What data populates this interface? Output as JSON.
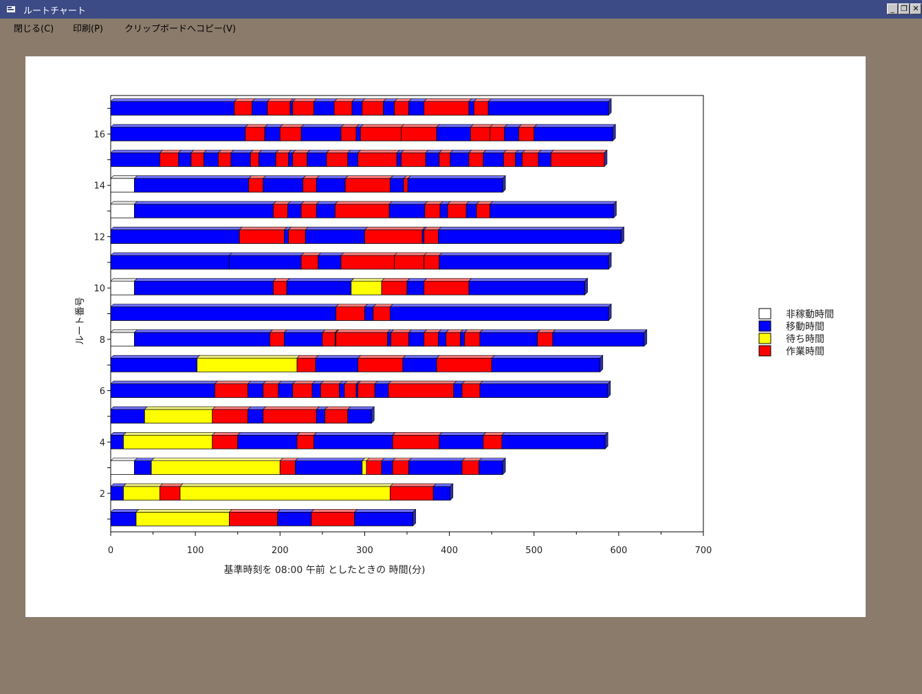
{
  "window": {
    "title": "ルートチャート"
  },
  "menu": {
    "items": [
      "閉じる(C)",
      "印刷(P)",
      "クリップボードへコピー(V)"
    ]
  },
  "chart_data": {
    "type": "bar",
    "orientation": "horizontal",
    "stacked": true,
    "xlabel": "基準時刻を 08:00 午前 としたときの 時間(分)",
    "ylabel": "ルート番号",
    "xlim": [
      0,
      700
    ],
    "xticks": [
      0,
      100,
      200,
      300,
      400,
      500,
      600,
      700
    ],
    "ytick_labels": [
      "2",
      "4",
      "6",
      "8",
      "10",
      "12",
      "14",
      "16"
    ],
    "legend_position": "right",
    "legend": [
      {
        "name": "非稼動時間",
        "color": "#ffffff"
      },
      {
        "name": "移動時間",
        "color": "#0000ff"
      },
      {
        "name": "待ち時間",
        "color": "#ffff00"
      },
      {
        "name": "作業時間",
        "color": "#ff0000"
      }
    ],
    "routes": [
      {
        "route": 1,
        "segments": [
          [
            "m",
            0,
            30
          ],
          [
            "w",
            30,
            140
          ],
          [
            "s",
            140,
            197
          ],
          [
            "m",
            197,
            237
          ],
          [
            "s",
            237,
            288
          ],
          [
            "m",
            288,
            357
          ]
        ]
      },
      {
        "route": 2,
        "segments": [
          [
            "m",
            0,
            15
          ],
          [
            "w",
            15,
            58
          ],
          [
            "s",
            58,
            82
          ],
          [
            "w",
            82,
            330
          ],
          [
            "s",
            330,
            381
          ],
          [
            "m",
            381,
            401
          ]
        ]
      },
      {
        "route": 3,
        "segments": [
          [
            "i",
            0,
            28
          ],
          [
            "m",
            28,
            48
          ],
          [
            "w",
            48,
            200
          ],
          [
            "s",
            200,
            218
          ],
          [
            "m",
            218,
            297
          ],
          [
            "w",
            297,
            302
          ],
          [
            "s",
            302,
            320
          ],
          [
            "m",
            320,
            333
          ],
          [
            "s",
            333,
            352
          ],
          [
            "m",
            352,
            415
          ],
          [
            "s",
            415,
            435
          ],
          [
            "m",
            435,
            463
          ]
        ]
      },
      {
        "route": 4,
        "segments": [
          [
            "m",
            0,
            15
          ],
          [
            "w",
            15,
            120
          ],
          [
            "s",
            120,
            150
          ],
          [
            "m",
            150,
            220
          ],
          [
            "s",
            220,
            240
          ],
          [
            "m",
            240,
            333
          ],
          [
            "s",
            333,
            388
          ],
          [
            "m",
            388,
            440
          ],
          [
            "s",
            440,
            462
          ],
          [
            "m",
            462,
            584
          ]
        ]
      },
      {
        "route": 5,
        "segments": [
          [
            "m",
            0,
            40
          ],
          [
            "w",
            40,
            120
          ],
          [
            "s",
            120,
            162
          ],
          [
            "m",
            162,
            180
          ],
          [
            "s",
            180,
            243
          ],
          [
            "m",
            243,
            253
          ],
          [
            "s",
            253,
            280
          ],
          [
            "m",
            280,
            308
          ]
        ]
      },
      {
        "route": 6,
        "segments": [
          [
            "m",
            0,
            123
          ],
          [
            "s",
            123,
            162
          ],
          [
            "m",
            162,
            180
          ],
          [
            "s",
            180,
            198
          ],
          [
            "m",
            198,
            215
          ],
          [
            "s",
            215,
            238
          ],
          [
            "m",
            238,
            248
          ],
          [
            "s",
            248,
            270
          ],
          [
            "m",
            270,
            276
          ],
          [
            "s",
            276,
            290
          ],
          [
            "m",
            290,
            292
          ],
          [
            "s",
            292,
            312
          ],
          [
            "m",
            312,
            328
          ],
          [
            "s",
            328,
            405
          ],
          [
            "m",
            405,
            415
          ],
          [
            "s",
            415,
            436
          ],
          [
            "m",
            436,
            587
          ]
        ]
      },
      {
        "route": 7,
        "segments": [
          [
            "m",
            0,
            102
          ],
          [
            "w",
            102,
            220
          ],
          [
            "s",
            220,
            242
          ],
          [
            "m",
            242,
            292
          ],
          [
            "s",
            292,
            345
          ],
          [
            "m",
            345,
            385
          ],
          [
            "s",
            385,
            450
          ],
          [
            "m",
            450,
            578
          ]
        ]
      },
      {
        "route": 8,
        "segments": [
          [
            "i",
            0,
            28
          ],
          [
            "m",
            28,
            188
          ],
          [
            "s",
            188,
            205
          ],
          [
            "m",
            205,
            250
          ],
          [
            "s",
            250,
            265
          ],
          [
            "m",
            265,
            266
          ],
          [
            "s",
            266,
            327
          ],
          [
            "m",
            327,
            331
          ],
          [
            "s",
            331,
            352
          ],
          [
            "m",
            352,
            370
          ],
          [
            "s",
            370,
            387
          ],
          [
            "m",
            387,
            396
          ],
          [
            "s",
            396,
            413
          ],
          [
            "m",
            413,
            418
          ],
          [
            "s",
            418,
            436
          ],
          [
            "m",
            436,
            504
          ],
          [
            "s",
            504,
            522
          ],
          [
            "m",
            522,
            630
          ]
        ]
      },
      {
        "route": 9,
        "segments": [
          [
            "m",
            0,
            266
          ],
          [
            "s",
            266,
            300
          ],
          [
            "m",
            300,
            310
          ],
          [
            "s",
            310,
            330
          ],
          [
            "m",
            330,
            588
          ]
        ]
      },
      {
        "route": 10,
        "segments": [
          [
            "i",
            0,
            28
          ],
          [
            "m",
            28,
            192
          ],
          [
            "s",
            192,
            208
          ],
          [
            "m",
            208,
            284
          ],
          [
            "w",
            284,
            320
          ],
          [
            "s",
            320,
            350
          ],
          [
            "m",
            350,
            370
          ],
          [
            "s",
            370,
            423
          ],
          [
            "m",
            423,
            560
          ]
        ]
      },
      {
        "route": 11,
        "segments": [
          [
            "m",
            0,
            140
          ],
          [
            "m",
            140,
            225
          ],
          [
            "s",
            225,
            245
          ],
          [
            "m",
            245,
            272
          ],
          [
            "s",
            272,
            335
          ],
          [
            "s",
            335,
            370
          ],
          [
            "s",
            370,
            388
          ],
          [
            "m",
            388,
            588
          ]
        ]
      },
      {
        "route": 12,
        "segments": [
          [
            "m",
            0,
            152
          ],
          [
            "s",
            152,
            205
          ],
          [
            "m",
            205,
            210
          ],
          [
            "s",
            210,
            230
          ],
          [
            "m",
            230,
            300
          ],
          [
            "s",
            300,
            368
          ],
          [
            "m",
            368,
            370
          ],
          [
            "s",
            370,
            387
          ],
          [
            "m",
            387,
            603
          ]
        ]
      },
      {
        "route": 13,
        "segments": [
          [
            "i",
            0,
            28
          ],
          [
            "m",
            28,
            192
          ],
          [
            "s",
            192,
            209
          ],
          [
            "m",
            209,
            225
          ],
          [
            "s",
            225,
            243
          ],
          [
            "m",
            243,
            265
          ],
          [
            "s",
            265,
            329
          ],
          [
            "m",
            329,
            371
          ],
          [
            "s",
            371,
            389
          ],
          [
            "m",
            389,
            398
          ],
          [
            "s",
            398,
            420
          ],
          [
            "m",
            420,
            432
          ],
          [
            "s",
            432,
            448
          ],
          [
            "m",
            448,
            594
          ]
        ]
      },
      {
        "route": 14,
        "segments": [
          [
            "i",
            0,
            28
          ],
          [
            "m",
            28,
            163
          ],
          [
            "s",
            163,
            180
          ],
          [
            "m",
            180,
            227
          ],
          [
            "s",
            227,
            243
          ],
          [
            "m",
            243,
            277
          ],
          [
            "s",
            277,
            330
          ],
          [
            "m",
            330,
            346
          ],
          [
            "s",
            346,
            351
          ],
          [
            "m",
            351,
            463
          ]
        ]
      },
      {
        "route": 15,
        "segments": [
          [
            "m",
            0,
            58
          ],
          [
            "s",
            58,
            80
          ],
          [
            "m",
            80,
            95
          ],
          [
            "s",
            95,
            110
          ],
          [
            "m",
            110,
            127
          ],
          [
            "s",
            127,
            142
          ],
          [
            "m",
            142,
            165
          ],
          [
            "s",
            165,
            175
          ],
          [
            "m",
            175,
            195
          ],
          [
            "s",
            195,
            210
          ],
          [
            "m",
            210,
            215
          ],
          [
            "s",
            215,
            232
          ],
          [
            "m",
            232,
            255
          ],
          [
            "s",
            255,
            280
          ],
          [
            "m",
            280,
            292
          ],
          [
            "s",
            292,
            338
          ],
          [
            "m",
            338,
            343
          ],
          [
            "s",
            343,
            372
          ],
          [
            "m",
            372,
            388
          ],
          [
            "s",
            388,
            401
          ],
          [
            "m",
            401,
            423
          ],
          [
            "s",
            423,
            440
          ],
          [
            "m",
            440,
            464
          ],
          [
            "s",
            464,
            478
          ],
          [
            "m",
            478,
            486
          ],
          [
            "s",
            486,
            505
          ],
          [
            "m",
            505,
            520
          ],
          [
            "s",
            520,
            583
          ]
        ]
      },
      {
        "route": 16,
        "segments": [
          [
            "m",
            0,
            159
          ],
          [
            "s",
            159,
            182
          ],
          [
            "m",
            182,
            200
          ],
          [
            "s",
            200,
            225
          ],
          [
            "m",
            225,
            272
          ],
          [
            "s",
            272,
            290
          ],
          [
            "m",
            290,
            295
          ],
          [
            "s",
            295,
            343
          ],
          [
            "s",
            343,
            385
          ],
          [
            "m",
            385,
            425
          ],
          [
            "s",
            425,
            448
          ],
          [
            "s",
            448,
            465
          ],
          [
            "m",
            465,
            482
          ],
          [
            "s",
            482,
            500
          ],
          [
            "m",
            500,
            593
          ]
        ]
      },
      {
        "route": 17,
        "segments": [
          [
            "m",
            0,
            146
          ],
          [
            "s",
            146,
            167
          ],
          [
            "m",
            167,
            185
          ],
          [
            "s",
            185,
            212
          ],
          [
            "m",
            212,
            215
          ],
          [
            "s",
            215,
            240
          ],
          [
            "m",
            240,
            264
          ],
          [
            "s",
            264,
            285
          ],
          [
            "m",
            285,
            297
          ],
          [
            "s",
            297,
            322
          ],
          [
            "m",
            322,
            335
          ],
          [
            "s",
            335,
            352
          ],
          [
            "m",
            352,
            370
          ],
          [
            "s",
            370,
            423
          ],
          [
            "m",
            423,
            429
          ],
          [
            "s",
            429,
            446
          ],
          [
            "m",
            446,
            588
          ]
        ]
      }
    ]
  }
}
